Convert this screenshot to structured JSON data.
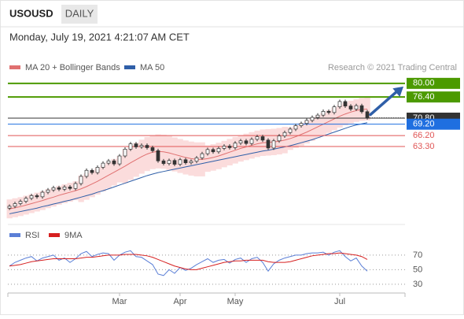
{
  "header": {
    "symbol": "USOUSD",
    "period": "DAILY",
    "timestamp": "Monday, July 19, 2021 4:21:07 AM CET"
  },
  "chart_data": [
    {
      "type": "candlestick",
      "source": "Research © 2021 Trading Central",
      "up_color": "#ffffff",
      "down_color": "#333333",
      "wick_color": "#333333",
      "open": [
        47.0,
        47.5,
        48.2,
        48.8,
        49.6,
        50.3,
        50.0,
        51.2,
        51.8,
        52.4,
        52.0,
        52.6,
        52.2,
        53.5,
        55.4,
        57.0,
        56.4,
        57.8,
        58.9,
        59.5,
        58.7,
        60.8,
        62.6,
        64.0,
        63.2,
        63.6,
        63.0,
        62.2,
        59.5,
        58.8,
        59.6,
        58.6,
        59.8,
        59.0,
        59.4,
        60.3,
        61.4,
        62.5,
        61.9,
        62.8,
        63.4,
        63.0,
        64.2,
        64.8,
        64.1,
        65.2,
        65.9,
        65.0,
        62.9,
        64.8,
        66.1,
        67.0,
        67.9,
        68.8,
        69.4,
        70.2,
        71.0,
        71.6,
        72.6,
        72.3,
        73.8,
        75.2,
        74.0,
        73.2,
        74.1,
        72.5
      ],
      "high": [
        48.0,
        48.7,
        49.3,
        50.1,
        50.8,
        50.8,
        51.7,
        52.3,
        52.9,
        52.9,
        53.1,
        53.1,
        54.0,
        55.9,
        57.5,
        57.5,
        58.3,
        59.4,
        60.0,
        60.0,
        61.3,
        63.1,
        64.5,
        64.5,
        64.1,
        64.1,
        63.5,
        62.7,
        60.0,
        60.1,
        60.1,
        60.3,
        60.3,
        59.9,
        60.8,
        61.9,
        63.0,
        63.0,
        63.3,
        63.9,
        63.9,
        64.7,
        65.3,
        65.3,
        65.7,
        66.4,
        66.4,
        65.5,
        65.3,
        66.6,
        67.5,
        68.4,
        69.3,
        69.9,
        70.7,
        71.5,
        72.1,
        73.1,
        73.1,
        74.3,
        75.7,
        75.7,
        74.5,
        74.6,
        74.6,
        73.0
      ],
      "low": [
        46.5,
        47.0,
        47.7,
        48.3,
        49.1,
        49.5,
        49.5,
        50.7,
        51.3,
        51.5,
        51.5,
        51.7,
        51.7,
        53.0,
        54.9,
        55.9,
        55.9,
        57.3,
        58.4,
        58.2,
        58.2,
        60.3,
        62.1,
        62.7,
        62.7,
        62.5,
        61.7,
        59.0,
        58.3,
        58.3,
        58.1,
        58.1,
        58.5,
        58.5,
        58.9,
        59.8,
        60.9,
        61.4,
        61.4,
        62.3,
        62.5,
        62.5,
        63.7,
        63.6,
        63.6,
        64.7,
        64.5,
        62.4,
        62.4,
        64.3,
        65.6,
        66.5,
        67.4,
        68.3,
        68.9,
        69.7,
        70.5,
        71.1,
        71.8,
        71.8,
        73.3,
        73.5,
        72.7,
        72.7,
        72.0,
        70.4
      ],
      "close": [
        47.5,
        48.2,
        48.8,
        49.6,
        50.3,
        50.0,
        51.2,
        51.8,
        52.4,
        52.0,
        52.6,
        52.2,
        53.5,
        55.4,
        57.0,
        56.4,
        57.8,
        58.9,
        59.5,
        58.7,
        60.8,
        62.6,
        64.0,
        63.2,
        63.6,
        63.0,
        62.2,
        59.5,
        58.8,
        59.6,
        58.6,
        59.8,
        59.0,
        59.4,
        60.3,
        61.4,
        62.5,
        61.9,
        62.8,
        63.4,
        63.0,
        64.2,
        64.8,
        64.1,
        65.2,
        65.9,
        65.0,
        62.9,
        64.8,
        66.1,
        67.0,
        67.9,
        68.8,
        69.4,
        70.2,
        71.0,
        71.6,
        72.6,
        72.3,
        73.8,
        75.2,
        74.0,
        73.2,
        74.1,
        72.5,
        70.9
      ],
      "series": [
        {
          "name": "MA 20 + Bollinger Bands",
          "color": "#e07070",
          "band_color": "#fbdcdc",
          "values": [
            46.8,
            47.1,
            47.4,
            47.8,
            48.2,
            48.6,
            49.0,
            49.5,
            49.9,
            50.4,
            50.8,
            51.2,
            51.6,
            52.1,
            52.7,
            53.4,
            54.1,
            54.9,
            55.7,
            56.5,
            57.3,
            58.1,
            59.0,
            59.8,
            60.6,
            61.3,
            61.8,
            62.0,
            61.9,
            61.6,
            61.2,
            60.8,
            60.4,
            60.1,
            59.9,
            59.9,
            60.1,
            60.4,
            60.8,
            61.3,
            61.8,
            62.3,
            62.8,
            63.2,
            63.6,
            64.0,
            64.3,
            64.4,
            64.5,
            64.7,
            65.0,
            65.4,
            65.9,
            66.5,
            67.1,
            67.8,
            68.5,
            69.2,
            69.9,
            70.6,
            71.3,
            71.9,
            72.4,
            72.8,
            73.1,
            73.2
          ],
          "upper": [
            49.3,
            49.6,
            49.9,
            50.3,
            50.7,
            51.1,
            51.5,
            52.0,
            52.4,
            52.9,
            53.3,
            53.7,
            54.1,
            55.6,
            56.2,
            56.9,
            57.6,
            58.4,
            59.2,
            60.0,
            60.8,
            62.6,
            63.5,
            64.3,
            65.1,
            65.8,
            66.3,
            66.5,
            66.4,
            66.1,
            65.7,
            65.3,
            64.9,
            64.6,
            64.4,
            64.4,
            63.6,
            63.9,
            64.3,
            64.8,
            65.3,
            65.8,
            66.3,
            66.7,
            67.1,
            67.5,
            67.8,
            67.9,
            68.0,
            68.2,
            68.5,
            68.4,
            68.9,
            69.5,
            70.1,
            70.8,
            71.5,
            72.2,
            72.9,
            73.6,
            74.3,
            74.9,
            75.4,
            75.8,
            76.1,
            76.2
          ],
          "lower": [
            44.3,
            44.6,
            44.9,
            45.3,
            45.7,
            46.1,
            46.5,
            47.0,
            47.4,
            47.9,
            48.3,
            48.7,
            49.1,
            48.6,
            49.2,
            49.9,
            50.6,
            51.4,
            52.2,
            53.0,
            53.8,
            53.6,
            54.5,
            55.3,
            56.1,
            56.8,
            57.3,
            57.5,
            57.4,
            57.1,
            56.7,
            56.3,
            55.9,
            55.6,
            55.4,
            55.4,
            56.6,
            56.9,
            57.3,
            57.8,
            58.3,
            58.8,
            59.3,
            59.7,
            60.1,
            60.5,
            60.8,
            60.9,
            61.0,
            61.2,
            61.5,
            62.4,
            62.9,
            63.5,
            64.1,
            64.8,
            65.5,
            66.2,
            66.9,
            67.6,
            68.3,
            68.9,
            69.4,
            69.8,
            70.1,
            70.2
          ]
        },
        {
          "name": "MA 50",
          "color": "#2f5fa8",
          "values": [
            45.5,
            45.8,
            46.1,
            46.4,
            46.7,
            47.0,
            47.4,
            47.7,
            48.1,
            48.4,
            48.8,
            49.1,
            49.5,
            49.9,
            50.3,
            50.7,
            51.2,
            51.6,
            52.1,
            52.6,
            53.1,
            53.6,
            54.1,
            54.6,
            55.1,
            55.6,
            56.0,
            56.4,
            56.7,
            57.0,
            57.3,
            57.6,
            57.9,
            58.2,
            58.5,
            58.8,
            59.1,
            59.4,
            59.7,
            60.0,
            60.3,
            60.6,
            60.9,
            61.2,
            61.5,
            61.8,
            62.1,
            62.3,
            62.6,
            62.9,
            63.2,
            63.5,
            63.9,
            64.3,
            64.7,
            65.1,
            65.6,
            66.1,
            66.6,
            67.1,
            67.6,
            68.1,
            68.6,
            69.0,
            69.3,
            69.6
          ]
        }
      ],
      "levels": {
        "values": [
          80,
          76.4,
          70.8,
          69.2,
          66.2,
          63.3
        ],
        "value_labels": [
          "80.00",
          "76.40",
          "70.80",
          "69.20",
          "66.20",
          "63.30"
        ],
        "colors": [
          "#4c9a00",
          "#4c9a00",
          "#333333",
          "#1f6fe0",
          "#e05555",
          "#e05555"
        ],
        "boxed": [
          true,
          true,
          true,
          true,
          false,
          false
        ]
      },
      "ylim": [
        45.8,
        83.3
      ]
    },
    {
      "type": "line",
      "series": [
        {
          "name": "RSI",
          "color": "#5b7fd6",
          "values": [
            55,
            60,
            63,
            66,
            68,
            62,
            66,
            68,
            70,
            63,
            66,
            60,
            65,
            72,
            75,
            68,
            71,
            73,
            72,
            63,
            70,
            74,
            76,
            68,
            67,
            62,
            57,
            44,
            42,
            50,
            45,
            53,
            49,
            52,
            57,
            61,
            65,
            60,
            63,
            64,
            59,
            64,
            66,
            60,
            65,
            67,
            60,
            48,
            58,
            63,
            66,
            68,
            70,
            70,
            72,
            73,
            73,
            74,
            70,
            74,
            76,
            68,
            62,
            66,
            55,
            48
          ]
        },
        {
          "name": "9MA",
          "color": "#d62020",
          "values": [
            55,
            56,
            57,
            59,
            61,
            62,
            63,
            64,
            65,
            65,
            65,
            65,
            65,
            66,
            67,
            67,
            68,
            69,
            70,
            70,
            70,
            71,
            71,
            71,
            70,
            69,
            67,
            64,
            61,
            58,
            55,
            53,
            51,
            50,
            50,
            52,
            54,
            56,
            58,
            60,
            61,
            62,
            62,
            63,
            63,
            63,
            63,
            61,
            60,
            60,
            60,
            61,
            63,
            65,
            67,
            69,
            70,
            71,
            72,
            72,
            73,
            72,
            71,
            70,
            68,
            64
          ]
        }
      ],
      "ylim": [
        18,
        85
      ],
      "yticks": [
        70,
        50,
        30
      ],
      "grid": true,
      "xticks": [
        {
          "value": 20,
          "label": "Mar"
        },
        {
          "value": 31,
          "label": "Apr"
        },
        {
          "value": 41,
          "label": "May"
        },
        {
          "value": 60,
          "label": "Jul"
        }
      ]
    }
  ]
}
